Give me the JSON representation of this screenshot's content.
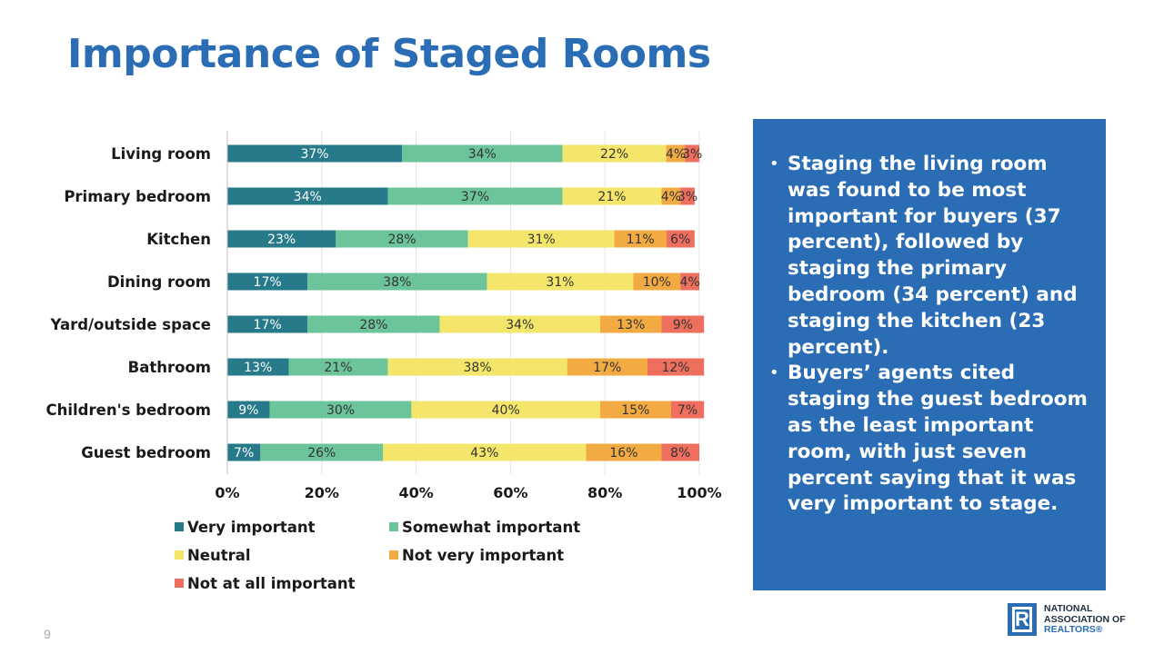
{
  "slide": {
    "title": "Importance of Staged Rooms",
    "page_number": "9",
    "bullets": [
      "Staging the living room was found to be most important for buyers (37 percent), followed by staging the primary bedroom (34 percent) and staging the kitchen (23 percent).",
      "Buyers’ agents cited staging the guest bedroom as the least important room, with just seven percent saying that it was very important to stage."
    ],
    "bullet_symbol": "•",
    "colors": {
      "title": "#2a6db5",
      "panel": "#2a6db5"
    }
  },
  "logo": {
    "mark_letter": "R",
    "line1": "NATIONAL",
    "line2": "ASSOCIATION OF",
    "line3": "REALTORS®"
  },
  "chart_data": {
    "type": "bar",
    "orientation": "horizontal",
    "stacked": "100%",
    "categories": [
      "Living room",
      "Primary bedroom",
      "Kitchen",
      "Dining room",
      "Yard/outside space",
      "Bathroom",
      "Children's bedroom",
      "Guest bedroom"
    ],
    "series": [
      {
        "name": "Very important",
        "color": "#277a8a",
        "label_color": "#ffffff",
        "values": [
          37,
          34,
          23,
          17,
          17,
          13,
          9,
          7
        ]
      },
      {
        "name": "Somewhat important",
        "color": "#6cc49b",
        "label_color": "#333333",
        "values": [
          34,
          37,
          28,
          38,
          28,
          21,
          30,
          26
        ]
      },
      {
        "name": "Neutral",
        "color": "#f4e66a",
        "label_color": "#333333",
        "values": [
          22,
          21,
          31,
          31,
          34,
          38,
          40,
          43
        ]
      },
      {
        "name": "Not very important",
        "color": "#f2aa42",
        "label_color": "#333333",
        "values": [
          4,
          4,
          11,
          10,
          13,
          17,
          15,
          16
        ]
      },
      {
        "name": "Not at all important",
        "color": "#ef6f5e",
        "label_color": "#333333",
        "values": [
          3,
          3,
          6,
          4,
          9,
          12,
          7,
          8
        ]
      }
    ],
    "x_ticks": [
      "0%",
      "20%",
      "40%",
      "60%",
      "80%",
      "100%"
    ],
    "xlim": [
      0,
      100
    ],
    "grid": true,
    "legend_position": "bottom"
  }
}
